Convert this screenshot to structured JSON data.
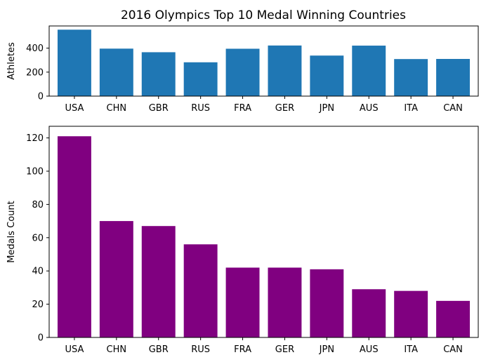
{
  "chart_data": [
    {
      "type": "bar",
      "title": "2016 Olympics Top 10 Medal Winning Countries",
      "xlabel": "",
      "ylabel": "Athletes",
      "categories": [
        "USA",
        "CHN",
        "GBR",
        "RUS",
        "FRA",
        "GER",
        "JPN",
        "AUS",
        "ITA",
        "CAN"
      ],
      "values": [
        554,
        396,
        366,
        282,
        395,
        422,
        338,
        421,
        309,
        310
      ],
      "ylim": [
        0,
        585
      ],
      "yticks": [
        0,
        200,
        400
      ],
      "color": "#1f77b4",
      "grid": false
    },
    {
      "type": "bar",
      "title": "",
      "xlabel": "",
      "ylabel": "Medals Count",
      "categories": [
        "USA",
        "CHN",
        "GBR",
        "RUS",
        "FRA",
        "GER",
        "JPN",
        "AUS",
        "ITA",
        "CAN"
      ],
      "values": [
        121,
        70,
        67,
        56,
        42,
        42,
        41,
        29,
        28,
        22
      ],
      "ylim": [
        0,
        127
      ],
      "yticks": [
        0,
        20,
        40,
        60,
        80,
        100,
        120
      ],
      "color": "#800080",
      "grid": false
    }
  ]
}
